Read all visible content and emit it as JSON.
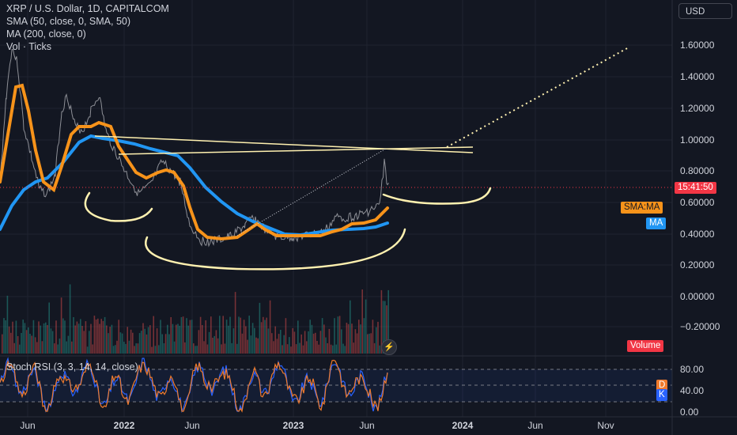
{
  "legend": {
    "symbol": "XRP / U.S. Dollar, 1D, CAPITALCOM",
    "sma": "SMA (50, close, 0, SMA, 50)",
    "ma": "MA (200, close, 0)",
    "vol": "Vol · Ticks"
  },
  "currency": "USD",
  "price_axis": [
    "1.60000",
    "1.40000",
    "1.20000",
    "1.00000",
    "0.80000",
    "0.60000",
    "0.40000",
    "0.20000",
    "0.00000",
    "−0.20000"
  ],
  "time_axis": [
    {
      "label": "Jun",
      "bold": false
    },
    {
      "label": "2022",
      "bold": true
    },
    {
      "label": "Jun",
      "bold": false
    },
    {
      "label": "2023",
      "bold": true
    },
    {
      "label": "Jun",
      "bold": false
    },
    {
      "label": "2024",
      "bold": true
    },
    {
      "label": "Jun",
      "bold": false
    },
    {
      "label": "Nov",
      "bold": false
    }
  ],
  "tags": {
    "countdown": "15:41:50",
    "sma_ma": "SMA:MA",
    "ma": "MA",
    "volume": "Volume",
    "d": "D",
    "k": "K"
  },
  "oscillator": {
    "title": "Stoch RSI (3, 3, 14, 14, close)",
    "ticks": [
      "80.00",
      "40.00",
      "0.00"
    ]
  },
  "colors": {
    "background": "#131722",
    "sma": "#f7931a",
    "ma": "#2196f3",
    "price": "#8d8f96",
    "countdown": "#f23645",
    "drawings": "#fff1b0",
    "osc_d": "#ef7a2c",
    "osc_k": "#2962ff"
  }
}
